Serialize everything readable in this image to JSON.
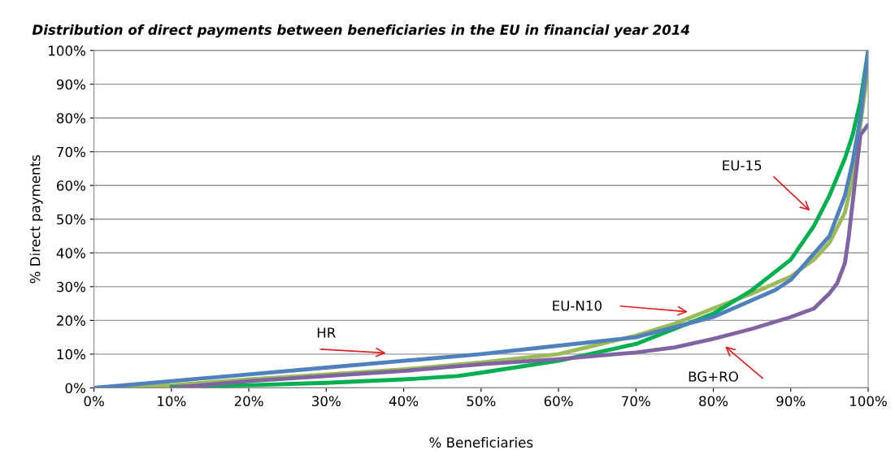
{
  "chart_data": {
    "type": "line",
    "title": "Distribution of direct payments between beneficiaries in the EU in financial year 2014",
    "xlabel": "% Beneficiaries",
    "ylabel": "% Direct payments",
    "xlim": [
      0,
      100
    ],
    "ylim": [
      0,
      100
    ],
    "xticks": [
      {
        "value": 0,
        "label": "0%"
      },
      {
        "value": 10,
        "label": "10%"
      },
      {
        "value": 20,
        "label": "20%"
      },
      {
        "value": 30,
        "label": "30%"
      },
      {
        "value": 40,
        "label": "40%"
      },
      {
        "value": 50,
        "label": "50%"
      },
      {
        "value": 60,
        "label": "60%"
      },
      {
        "value": 70,
        "label": "70%"
      },
      {
        "value": 80,
        "label": "80%"
      },
      {
        "value": 90,
        "label": "90%"
      },
      {
        "value": 100,
        "label": "100%"
      }
    ],
    "yticks": [
      {
        "value": 0,
        "label": "0%"
      },
      {
        "value": 10,
        "label": "10%"
      },
      {
        "value": 20,
        "label": "20%"
      },
      {
        "value": 30,
        "label": "30%"
      },
      {
        "value": 40,
        "label": "40%"
      },
      {
        "value": 50,
        "label": "50%"
      },
      {
        "value": 60,
        "label": "60%"
      },
      {
        "value": 70,
        "label": "70%"
      },
      {
        "value": 80,
        "label": "80%"
      },
      {
        "value": 90,
        "label": "90%"
      },
      {
        "value": 100,
        "label": "100%"
      }
    ],
    "grid": "y",
    "marker": "none",
    "line_style": "solid",
    "series": [
      {
        "color": "#9bbb59",
        "x": [
          0,
          10,
          20,
          30,
          40,
          50,
          60,
          70,
          75,
          80,
          85,
          90,
          93,
          95,
          97,
          98,
          99,
          100
        ],
        "values": [
          0,
          0.8,
          2.5,
          4,
          5.5,
          7.5,
          10,
          15.5,
          19,
          23.5,
          28,
          33,
          38,
          43,
          52,
          62,
          78,
          95
        ]
      },
      {
        "color": "#00b050",
        "x": [
          10,
          20,
          30,
          40,
          47,
          50,
          60,
          70,
          80,
          85,
          90,
          93,
          95,
          97,
          98,
          99,
          100
        ],
        "values": [
          0.3,
          0.8,
          1.5,
          2.5,
          3.5,
          4.5,
          8,
          13,
          22,
          29,
          38,
          48,
          57,
          68,
          75,
          85,
          100
        ]
      },
      {
        "color": "#8064a2",
        "x": [
          10,
          20,
          30,
          40,
          50,
          60,
          70,
          75,
          80,
          85,
          90,
          93,
          95,
          96,
          97,
          97.5,
          98,
          98.5,
          99,
          100
        ],
        "values": [
          0,
          2,
          3.5,
          5,
          7,
          8.5,
          10.5,
          12,
          14.5,
          17.5,
          21,
          23.5,
          28,
          31,
          37,
          45,
          55,
          65,
          75,
          78
        ]
      },
      {
        "color": "#4f81bd",
        "x": [
          0,
          10,
          20,
          30,
          40,
          50,
          60,
          70,
          80,
          88,
          90,
          95,
          97,
          98,
          99,
          100
        ],
        "values": [
          0,
          2,
          4,
          6,
          8,
          10,
          12.5,
          15,
          21,
          29,
          32,
          45,
          57,
          67,
          80,
          100
        ]
      }
    ],
    "annotations": [
      "HR",
      "EU-N10",
      "EU-15",
      "BG+RO"
    ]
  }
}
